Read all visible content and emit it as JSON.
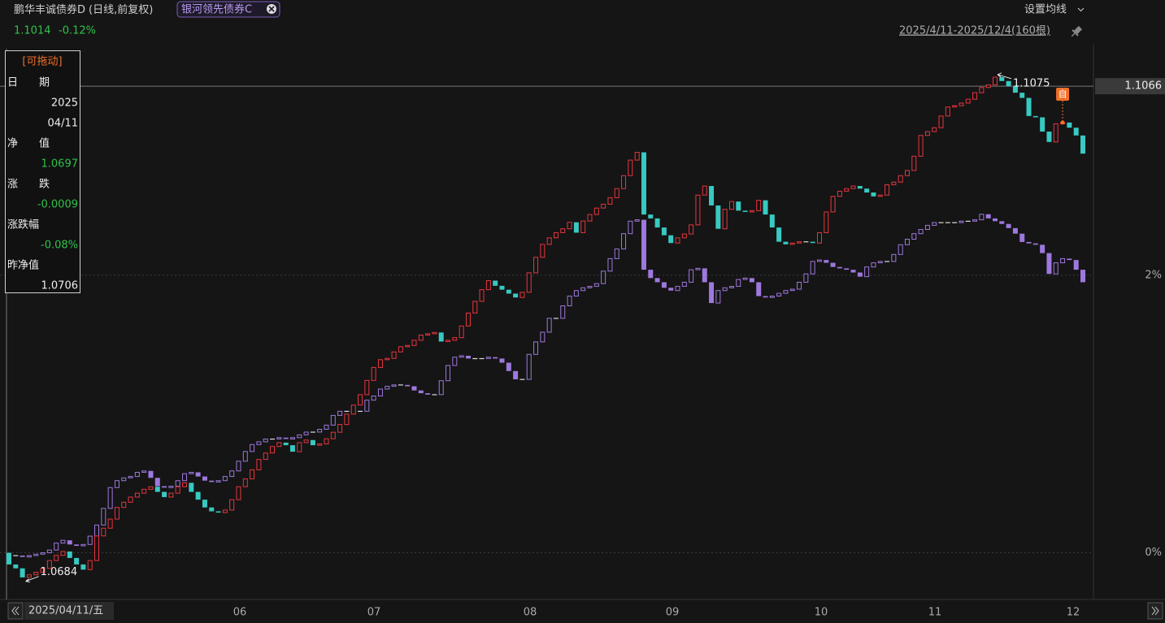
{
  "chart_data": {
    "type": "candlestick",
    "subtitle": "(日线,前复权)",
    "change": "-0.12%",
    "settings_label": "设置均线",
    "range_label": "2025/4/11-2025/12/4(160根)",
    "x_cursor_label": "2025/04/11/五",
    "x_labels": [
      "06",
      "07",
      "08",
      "09",
      "10",
      "11",
      "12"
    ],
    "marker_label": "自",
    "crosshair": 1.1066,
    "annotations": {
      "high": 1.1075,
      "low": 1.0684
    },
    "ylim": [
      1.067,
      1.112
    ],
    "y2lim": [
      -0.3363,
      3.867
    ],
    "y2ticks": [
      {
        "value": 0,
        "label": "0%"
      },
      {
        "value": 2,
        "label": "2%"
      }
    ],
    "grid": true,
    "tooltip": {
      "drag_hint": "[可拖动]",
      "rows": [
        {
          "label": "日　　期",
          "values": [
            "2025",
            "04/11"
          ]
        },
        {
          "label": "净　　值",
          "values": [
            1.0697
          ]
        },
        {
          "label": "涨　　跌",
          "values": [
            -0.0009
          ]
        },
        {
          "label": "涨跌幅",
          "values": [
            "-0.08%"
          ]
        },
        {
          "label": "昨净值",
          "values": [
            1.0706
          ]
        }
      ]
    },
    "series": [
      {
        "name": "鹏华丰诚债券D",
        "up_color": "#e8353f",
        "down_color": "#38c9c2",
        "values": [
          1.0697,
          1.0694,
          1.0687,
          1.0689,
          1.0691,
          1.0694,
          1.07,
          1.0704,
          1.0707,
          1.0702,
          1.0697,
          1.0693,
          1.07,
          1.0719,
          1.0725,
          1.0732,
          1.0741,
          1.0745,
          1.0749,
          1.0752,
          1.0755,
          1.0757,
          1.0753,
          1.0749,
          1.0752,
          1.0757,
          1.076,
          1.0753,
          1.0747,
          1.0741,
          1.0738,
          1.0737,
          1.0739,
          1.0747,
          1.0757,
          1.0763,
          1.077,
          1.0778,
          1.0783,
          1.0788,
          1.0791,
          1.0789,
          1.0784,
          1.0791,
          1.0793,
          1.0789,
          1.079,
          1.0794,
          1.0799,
          1.0805,
          1.0813,
          1.082,
          1.0828,
          1.0839,
          1.0849,
          1.0855,
          1.0856,
          1.0861,
          1.0865,
          1.0866,
          1.087,
          1.0874,
          1.0875,
          1.0876,
          1.0869,
          1.087,
          1.0872,
          1.0881,
          1.0891,
          1.09,
          1.0909,
          1.0916,
          1.0912,
          1.0909,
          1.0906,
          1.0903,
          1.0907,
          1.0922,
          1.0934,
          1.0944,
          1.0949,
          1.0953,
          1.0956,
          1.0961,
          1.0953,
          1.0962,
          1.0967,
          1.0972,
          1.0975,
          1.098,
          1.0987,
          1.0997,
          1.1009,
          1.1015,
          1.0967,
          1.0964,
          1.0957,
          1.0951,
          1.0945,
          1.0949,
          1.0952,
          1.0959,
          1.0982,
          1.0989,
          1.0974,
          1.0956,
          1.0971,
          1.0977,
          1.097,
          1.0969,
          1.097,
          1.0978,
          1.0967,
          1.0957,
          1.0946,
          1.0944,
          1.0945,
          1.0946,
          1.0946,
          1.0945,
          1.0953,
          1.0969,
          1.0981,
          1.0985,
          1.0987,
          1.0989,
          1.0987,
          1.0984,
          1.0981,
          1.0982,
          1.099,
          1.0992,
          1.0997,
          1.1001,
          1.1012,
          1.1028,
          1.1031,
          1.1034,
          1.1043,
          1.105,
          1.1051,
          1.1053,
          1.1056,
          1.1061,
          1.1065,
          1.1067,
          1.1073,
          1.107,
          1.1066,
          1.1061,
          1.1057,
          1.1043,
          1.1042,
          1.1031,
          1.1023,
          1.1037,
          1.1038,
          1.1034,
          1.1028,
          1.1014
        ]
      },
      {
        "name": "银河领先债券C",
        "up_color": "#9e78de",
        "down_color": "#9e78de",
        "axis": "y2",
        "values": [
          -0.02,
          -0.02,
          -0.03,
          -0.02,
          -0.01,
          0,
          0.02,
          0.07,
          0.09,
          0.06,
          0.05,
          0.06,
          0.12,
          0.2,
          0.32,
          0.47,
          0.52,
          0.54,
          0.55,
          0.58,
          0.59,
          0.54,
          0.48,
          0.47,
          0.48,
          0.52,
          0.57,
          0.58,
          0.55,
          0.52,
          0.51,
          0.52,
          0.55,
          0.59,
          0.66,
          0.73,
          0.78,
          0.8,
          0.82,
          0.82,
          0.83,
          0.82,
          0.83,
          0.85,
          0.87,
          0.87,
          0.89,
          0.92,
          0.99,
          1.02,
          1.02,
          1.02,
          1.02,
          1.1,
          1.13,
          1.18,
          1.2,
          1.21,
          1.21,
          1.2,
          1.17,
          1.15,
          1.14,
          1.14,
          1.24,
          1.35,
          1.41,
          1.42,
          1.4,
          1.4,
          1.4,
          1.41,
          1.4,
          1.37,
          1.31,
          1.25,
          1.25,
          1.43,
          1.52,
          1.59,
          1.69,
          1.69,
          1.78,
          1.85,
          1.89,
          1.91,
          1.92,
          1.94,
          2.03,
          2.12,
          2.19,
          2.3,
          2.39,
          2.4,
          2.04,
          1.98,
          1.95,
          1.91,
          1.89,
          1.92,
          1.95,
          2.04,
          2.05,
          1.95,
          1.8,
          1.89,
          1.91,
          1.92,
          1.97,
          1.98,
          1.95,
          1.85,
          1.84,
          1.85,
          1.87,
          1.89,
          1.9,
          1.95,
          2.01,
          2.1,
          2.11,
          2.09,
          2.06,
          2.05,
          2.04,
          2.02,
          1.99,
          2.06,
          2.09,
          2.1,
          2.1,
          2.15,
          2.22,
          2.26,
          2.3,
          2.33,
          2.36,
          2.38,
          2.38,
          2.38,
          2.38,
          2.39,
          2.39,
          2.4,
          2.44,
          2.41,
          2.39,
          2.37,
          2.34,
          2.3,
          2.24,
          2.23,
          2.22,
          2.16,
          2.01,
          2.09,
          2.12,
          2.11,
          2.04,
          1.95
        ]
      }
    ]
  }
}
